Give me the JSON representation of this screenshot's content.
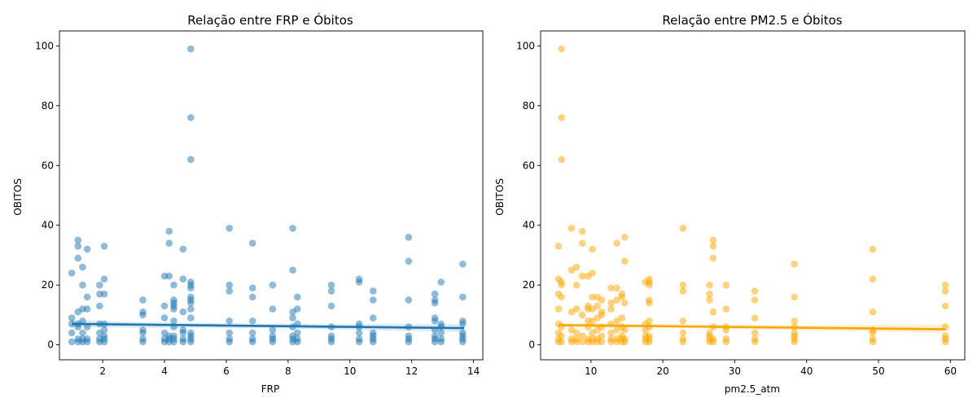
{
  "chart_data": [
    {
      "type": "scatter",
      "title": "Relação entre FRP e Óbitos",
      "xlabel": "FRP",
      "ylabel": "OBITOS",
      "xlim": [
        0.6,
        14.3
      ],
      "ylim": [
        -5,
        105
      ],
      "xticks": [
        2,
        4,
        6,
        8,
        10,
        12,
        14
      ],
      "yticks": [
        0,
        20,
        40,
        60,
        80,
        100
      ],
      "color": "#1f77b4",
      "point_alpha": 0.5,
      "regression": {
        "x": [
          1.0,
          13.7
        ],
        "y": [
          7.0,
          5.6
        ]
      },
      "ci_band": {
        "x": [
          1.0,
          4.0,
          7.0,
          10.0,
          13.7
        ],
        "lower": [
          5.9,
          5.7,
          5.6,
          5.1,
          4.3
        ],
        "upper": [
          8.2,
          7.4,
          7.1,
          6.9,
          6.9
        ]
      },
      "points": [
        [
          1.0,
          1
        ],
        [
          1.0,
          4
        ],
        [
          1.0,
          7
        ],
        [
          1.0,
          9
        ],
        [
          1.0,
          24
        ],
        [
          1.2,
          1
        ],
        [
          1.2,
          2
        ],
        [
          1.2,
          6
        ],
        [
          1.2,
          7
        ],
        [
          1.2,
          11
        ],
        [
          1.2,
          29
        ],
        [
          1.2,
          33
        ],
        [
          1.2,
          35
        ],
        [
          1.35,
          1
        ],
        [
          1.35,
          2
        ],
        [
          1.35,
          4
        ],
        [
          1.35,
          8
        ],
        [
          1.35,
          12
        ],
        [
          1.35,
          20
        ],
        [
          1.35,
          26
        ],
        [
          1.5,
          1
        ],
        [
          1.5,
          2
        ],
        [
          1.5,
          6
        ],
        [
          1.5,
          12
        ],
        [
          1.5,
          16
        ],
        [
          1.5,
          32
        ],
        [
          1.9,
          1
        ],
        [
          1.9,
          2
        ],
        [
          1.9,
          4
        ],
        [
          1.9,
          7
        ],
        [
          1.9,
          13
        ],
        [
          1.9,
          17
        ],
        [
          1.9,
          20
        ],
        [
          2.05,
          1
        ],
        [
          2.05,
          2
        ],
        [
          2.05,
          3
        ],
        [
          2.05,
          5
        ],
        [
          2.05,
          7
        ],
        [
          2.05,
          17
        ],
        [
          2.05,
          22
        ],
        [
          2.05,
          33
        ],
        [
          3.3,
          1
        ],
        [
          3.3,
          2
        ],
        [
          3.3,
          4
        ],
        [
          3.3,
          5
        ],
        [
          3.3,
          10
        ],
        [
          3.3,
          11
        ],
        [
          3.3,
          15
        ],
        [
          4.0,
          1
        ],
        [
          4.0,
          2
        ],
        [
          4.0,
          4
        ],
        [
          4.0,
          9
        ],
        [
          4.0,
          13
        ],
        [
          4.0,
          23
        ],
        [
          4.15,
          1
        ],
        [
          4.15,
          2
        ],
        [
          4.15,
          3
        ],
        [
          4.15,
          23
        ],
        [
          4.15,
          34
        ],
        [
          4.15,
          38
        ],
        [
          4.3,
          1
        ],
        [
          4.3,
          2
        ],
        [
          4.3,
          3
        ],
        [
          4.3,
          6
        ],
        [
          4.3,
          8
        ],
        [
          4.3,
          12
        ],
        [
          4.3,
          13
        ],
        [
          4.3,
          14
        ],
        [
          4.3,
          15
        ],
        [
          4.3,
          20
        ],
        [
          4.6,
          1
        ],
        [
          4.6,
          2
        ],
        [
          4.6,
          4
        ],
        [
          4.6,
          5
        ],
        [
          4.6,
          11
        ],
        [
          4.6,
          22
        ],
        [
          4.6,
          32
        ],
        [
          4.85,
          1
        ],
        [
          4.85,
          2
        ],
        [
          4.85,
          3
        ],
        [
          4.85,
          4
        ],
        [
          4.85,
          9
        ],
        [
          4.85,
          12
        ],
        [
          4.85,
          14
        ],
        [
          4.85,
          15
        ],
        [
          4.85,
          16
        ],
        [
          4.85,
          19
        ],
        [
          4.85,
          20
        ],
        [
          4.85,
          21
        ],
        [
          4.85,
          62
        ],
        [
          4.85,
          76
        ],
        [
          4.85,
          99
        ],
        [
          6.1,
          1
        ],
        [
          6.1,
          2
        ],
        [
          6.1,
          4
        ],
        [
          6.1,
          8
        ],
        [
          6.1,
          18
        ],
        [
          6.1,
          20
        ],
        [
          6.1,
          39
        ],
        [
          6.85,
          1
        ],
        [
          6.85,
          2
        ],
        [
          6.85,
          4
        ],
        [
          6.85,
          8
        ],
        [
          6.85,
          16
        ],
        [
          6.85,
          19
        ],
        [
          6.85,
          34
        ],
        [
          7.5,
          1
        ],
        [
          7.5,
          2
        ],
        [
          7.5,
          3
        ],
        [
          7.5,
          5
        ],
        [
          7.5,
          12
        ],
        [
          7.5,
          20
        ],
        [
          8.15,
          1
        ],
        [
          8.15,
          2
        ],
        [
          8.15,
          3
        ],
        [
          8.15,
          6
        ],
        [
          8.15,
          9
        ],
        [
          8.15,
          11
        ],
        [
          8.15,
          25
        ],
        [
          8.15,
          39
        ],
        [
          8.3,
          1
        ],
        [
          8.3,
          2
        ],
        [
          8.3,
          4
        ],
        [
          8.3,
          7
        ],
        [
          8.3,
          12
        ],
        [
          8.3,
          16
        ],
        [
          9.4,
          1
        ],
        [
          9.4,
          2
        ],
        [
          9.4,
          3
        ],
        [
          9.4,
          6
        ],
        [
          9.4,
          13
        ],
        [
          9.4,
          18
        ],
        [
          9.4,
          20
        ],
        [
          10.3,
          1
        ],
        [
          10.3,
          2
        ],
        [
          10.3,
          4
        ],
        [
          10.3,
          6
        ],
        [
          10.3,
          7
        ],
        [
          10.3,
          21
        ],
        [
          10.3,
          22
        ],
        [
          10.75,
          1
        ],
        [
          10.75,
          2
        ],
        [
          10.75,
          3
        ],
        [
          10.75,
          4
        ],
        [
          10.75,
          9
        ],
        [
          10.75,
          15
        ],
        [
          10.75,
          18
        ],
        [
          11.9,
          1
        ],
        [
          11.9,
          2
        ],
        [
          11.9,
          3
        ],
        [
          11.9,
          6
        ],
        [
          11.9,
          15
        ],
        [
          11.9,
          28
        ],
        [
          11.9,
          36
        ],
        [
          12.75,
          1
        ],
        [
          12.75,
          2
        ],
        [
          12.75,
          3
        ],
        [
          12.75,
          5
        ],
        [
          12.75,
          8
        ],
        [
          12.75,
          9
        ],
        [
          12.75,
          14
        ],
        [
          12.75,
          15
        ],
        [
          12.75,
          17
        ],
        [
          12.95,
          1
        ],
        [
          12.95,
          2
        ],
        [
          12.95,
          4
        ],
        [
          12.95,
          6
        ],
        [
          12.95,
          7
        ],
        [
          12.95,
          21
        ],
        [
          13.65,
          1
        ],
        [
          13.65,
          2
        ],
        [
          13.65,
          3
        ],
        [
          13.65,
          4
        ],
        [
          13.65,
          7
        ],
        [
          13.65,
          8
        ],
        [
          13.65,
          16
        ],
        [
          13.65,
          27
        ]
      ]
    },
    {
      "type": "scatter",
      "title": "Relação entre PM2.5 e Óbitos",
      "xlabel": "pm2.5_atm",
      "ylabel": "OBITOS",
      "xlim": [
        3,
        62
      ],
      "ylim": [
        -5,
        105
      ],
      "xticks": [
        10,
        20,
        30,
        40,
        50,
        60
      ],
      "yticks": [
        0,
        20,
        40,
        60,
        80,
        100
      ],
      "color": "#ffa500",
      "point_alpha": 0.5,
      "regression": {
        "x": [
          5.5,
          59.3
        ],
        "y": [
          6.6,
          5.2
        ]
      },
      "ci_band": {
        "x": [
          5.5,
          20,
          35,
          45,
          59.3
        ],
        "lower": [
          5.9,
          5.8,
          5.1,
          4.6,
          3.9
        ],
        "upper": [
          7.2,
          7.0,
          6.6,
          6.6,
          6.9
        ]
      },
      "points": [
        [
          5.5,
          1
        ],
        [
          5.5,
          2
        ],
        [
          5.5,
          4
        ],
        [
          5.5,
          7
        ],
        [
          5.5,
          12
        ],
        [
          5.5,
          17
        ],
        [
          5.5,
          22
        ],
        [
          5.5,
          33
        ],
        [
          5.9,
          1
        ],
        [
          5.9,
          3
        ],
        [
          5.9,
          6
        ],
        [
          5.9,
          16
        ],
        [
          5.9,
          20
        ],
        [
          5.9,
          21
        ],
        [
          5.9,
          62
        ],
        [
          5.9,
          76
        ],
        [
          5.9,
          99
        ],
        [
          7.3,
          1
        ],
        [
          7.3,
          2
        ],
        [
          7.3,
          5
        ],
        [
          7.3,
          11
        ],
        [
          7.3,
          25
        ],
        [
          7.3,
          39
        ],
        [
          8.0,
          1
        ],
        [
          8.0,
          2
        ],
        [
          8.0,
          4
        ],
        [
          8.0,
          12
        ],
        [
          8.0,
          20
        ],
        [
          8.0,
          26
        ],
        [
          8.8,
          1
        ],
        [
          8.8,
          3
        ],
        [
          8.8,
          10
        ],
        [
          8.8,
          23
        ],
        [
          8.8,
          34
        ],
        [
          8.8,
          38
        ],
        [
          9.6,
          1
        ],
        [
          9.6,
          2
        ],
        [
          9.6,
          6
        ],
        [
          9.6,
          8
        ],
        [
          9.6,
          12
        ],
        [
          9.6,
          13
        ],
        [
          9.6,
          23
        ],
        [
          10.2,
          1
        ],
        [
          10.2,
          2
        ],
        [
          10.2,
          4
        ],
        [
          10.2,
          8
        ],
        [
          10.2,
          12
        ],
        [
          10.2,
          16
        ],
        [
          10.2,
          24
        ],
        [
          10.2,
          32
        ],
        [
          10.9,
          1
        ],
        [
          10.9,
          2
        ],
        [
          10.9,
          5
        ],
        [
          10.9,
          9
        ],
        [
          10.9,
          13
        ],
        [
          10.9,
          16
        ],
        [
          11.5,
          1
        ],
        [
          11.5,
          3
        ],
        [
          11.5,
          6
        ],
        [
          11.5,
          10
        ],
        [
          11.5,
          11
        ],
        [
          11.5,
          15
        ],
        [
          12.8,
          1
        ],
        [
          12.8,
          2
        ],
        [
          12.8,
          4
        ],
        [
          12.8,
          7
        ],
        [
          12.8,
          12
        ],
        [
          12.8,
          14
        ],
        [
          12.8,
          19
        ],
        [
          13.6,
          1
        ],
        [
          13.6,
          2
        ],
        [
          13.6,
          5
        ],
        [
          13.6,
          8
        ],
        [
          13.6,
          15
        ],
        [
          13.6,
          19
        ],
        [
          13.6,
          34
        ],
        [
          14.3,
          1
        ],
        [
          14.3,
          2
        ],
        [
          14.3,
          3
        ],
        [
          14.3,
          6
        ],
        [
          14.3,
          9
        ],
        [
          14.3,
          16
        ],
        [
          14.3,
          17
        ],
        [
          14.7,
          1
        ],
        [
          14.7,
          2
        ],
        [
          14.7,
          5
        ],
        [
          14.7,
          14
        ],
        [
          14.7,
          28
        ],
        [
          14.7,
          36
        ],
        [
          17.6,
          1
        ],
        [
          17.6,
          2
        ],
        [
          17.6,
          3
        ],
        [
          17.6,
          5
        ],
        [
          17.6,
          7
        ],
        [
          17.6,
          21
        ],
        [
          18.1,
          1
        ],
        [
          18.1,
          2
        ],
        [
          18.1,
          3
        ],
        [
          18.1,
          6
        ],
        [
          18.1,
          8
        ],
        [
          18.1,
          14
        ],
        [
          18.1,
          15
        ],
        [
          18.1,
          20
        ],
        [
          18.1,
          21
        ],
        [
          18.1,
          22
        ],
        [
          22.8,
          1
        ],
        [
          22.8,
          2
        ],
        [
          22.8,
          4
        ],
        [
          22.8,
          8
        ],
        [
          22.8,
          18
        ],
        [
          22.8,
          20
        ],
        [
          22.8,
          39
        ],
        [
          26.5,
          1
        ],
        [
          26.5,
          2
        ],
        [
          26.5,
          3
        ],
        [
          26.5,
          4
        ],
        [
          26.5,
          15
        ],
        [
          26.5,
          17
        ],
        [
          26.5,
          20
        ],
        [
          27.0,
          1
        ],
        [
          27.0,
          2
        ],
        [
          27.0,
          6
        ],
        [
          27.0,
          11
        ],
        [
          27.0,
          29
        ],
        [
          27.0,
          33
        ],
        [
          27.0,
          35
        ],
        [
          28.8,
          1
        ],
        [
          28.8,
          2
        ],
        [
          28.8,
          5
        ],
        [
          28.8,
          6
        ],
        [
          28.8,
          12
        ],
        [
          28.8,
          20
        ],
        [
          32.8,
          1
        ],
        [
          32.8,
          2
        ],
        [
          32.8,
          4
        ],
        [
          32.8,
          9
        ],
        [
          32.8,
          15
        ],
        [
          32.8,
          18
        ],
        [
          38.3,
          1
        ],
        [
          38.3,
          2
        ],
        [
          38.3,
          3
        ],
        [
          38.3,
          4
        ],
        [
          38.3,
          6
        ],
        [
          38.3,
          8
        ],
        [
          38.3,
          16
        ],
        [
          38.3,
          27
        ],
        [
          49.2,
          1
        ],
        [
          49.2,
          2
        ],
        [
          49.2,
          4
        ],
        [
          49.2,
          5
        ],
        [
          49.2,
          11
        ],
        [
          49.2,
          22
        ],
        [
          49.2,
          32
        ],
        [
          59.3,
          1
        ],
        [
          59.3,
          2
        ],
        [
          59.3,
          3
        ],
        [
          59.3,
          6
        ],
        [
          59.3,
          13
        ],
        [
          59.3,
          18
        ],
        [
          59.3,
          20
        ]
      ]
    }
  ]
}
